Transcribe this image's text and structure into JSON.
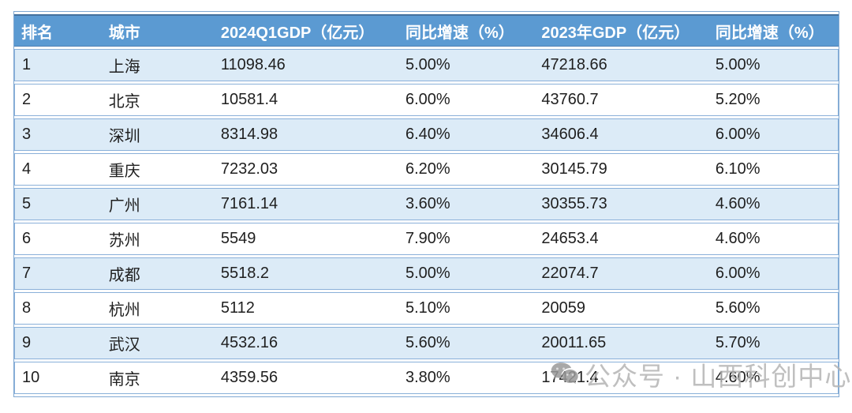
{
  "chart_data": {
    "type": "table",
    "columns": [
      "排名",
      "城市",
      "2024Q1GDP（亿元）",
      "同比增速（%）",
      "2023年GDP（亿元）",
      "同比增速（%）"
    ],
    "rows": [
      [
        "1",
        "上海",
        "11098.46",
        "5.00%",
        "47218.66",
        "5.00%"
      ],
      [
        "2",
        "北京",
        "10581.4",
        "6.00%",
        "43760.7",
        "5.20%"
      ],
      [
        "3",
        "深圳",
        "8314.98",
        "6.40%",
        "34606.4",
        "6.00%"
      ],
      [
        "4",
        "重庆",
        "7232.03",
        "6.20%",
        "30145.79",
        "6.10%"
      ],
      [
        "5",
        "广州",
        "7161.14",
        "3.60%",
        "30355.73",
        "4.60%"
      ],
      [
        "6",
        "苏州",
        "5549",
        "7.90%",
        "24653.4",
        "4.60%"
      ],
      [
        "7",
        "成都",
        "5518.2",
        "5.00%",
        "22074.7",
        "6.00%"
      ],
      [
        "8",
        "杭州",
        "5112",
        "5.10%",
        "20059",
        "5.60%"
      ],
      [
        "9",
        "武汉",
        "4532.16",
        "5.60%",
        "20011.65",
        "5.70%"
      ],
      [
        "10",
        "南京",
        "4359.56",
        "3.80%",
        "17421.4",
        "4.60%"
      ]
    ]
  },
  "watermark": {
    "icon": "wechat-icon",
    "text": "公众号 · 山西科创中心"
  },
  "colors": {
    "header_bg": "#5b9ad2",
    "header_top_edge": "#44719e",
    "header_text": "#ffffff",
    "row_alt_bg": "#dcebf7",
    "row_bg": "#ffffff",
    "cell_border": "#8ab0d9",
    "body_text": "#1f1f1f",
    "watermark_gray": "#b4b4b4"
  }
}
